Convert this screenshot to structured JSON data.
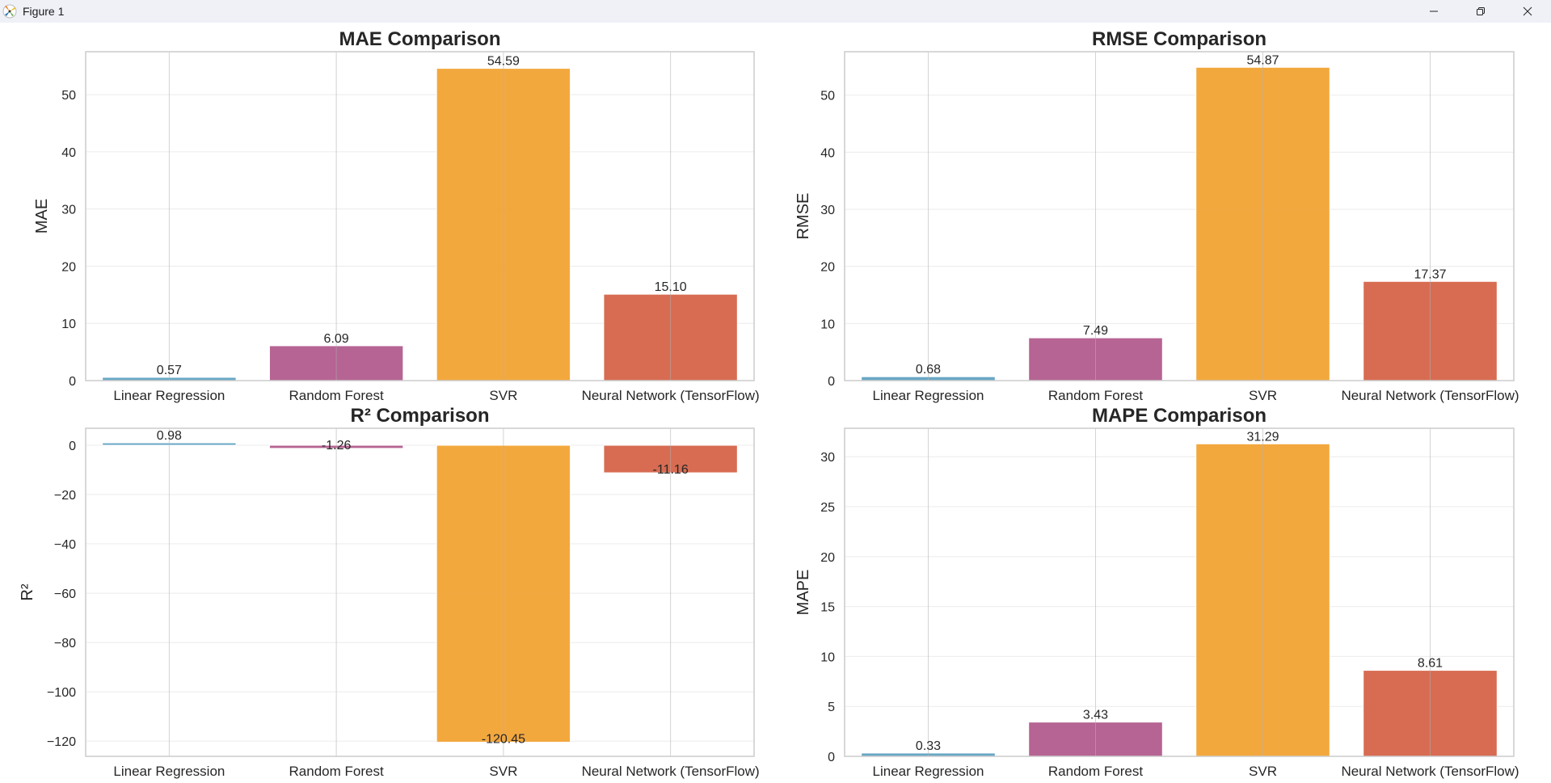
{
  "window": {
    "title": "Figure 1",
    "icons": {
      "app": "matplotlib-icon",
      "minimize": "minimize-icon",
      "restore": "restore-icon",
      "close": "close-icon"
    }
  },
  "palette": {
    "Linear Regression": "#5b9fbf",
    "Random Forest": "#b0578a",
    "SVR": "#f2a12e",
    "Neural Network (TensorFlow)": "#d45f43"
  },
  "chart_data": [
    {
      "type": "bar",
      "title": "MAE Comparison",
      "xlabel": "",
      "ylabel": "MAE",
      "categories": [
        "Linear Regression",
        "Random Forest",
        "SVR",
        "Neural Network (TensorFlow)"
      ],
      "values": [
        0.57,
        6.09,
        54.59,
        15.1
      ],
      "value_labels": [
        "0.57",
        "6.09",
        "54.59",
        "15.10"
      ],
      "ylim": [
        0,
        57.5
      ],
      "yticks": [
        0,
        10,
        20,
        30,
        40,
        50
      ],
      "ytick_labels": [
        "0",
        "10",
        "20",
        "30",
        "40",
        "50"
      ],
      "grid": true,
      "position": "top-left"
    },
    {
      "type": "bar",
      "title": "RMSE Comparison",
      "xlabel": "",
      "ylabel": "RMSE",
      "categories": [
        "Linear Regression",
        "Random Forest",
        "SVR",
        "Neural Network (TensorFlow)"
      ],
      "values": [
        0.68,
        7.49,
        54.87,
        17.37
      ],
      "value_labels": [
        "0.68",
        "7.49",
        "54.87",
        "17.37"
      ],
      "ylim": [
        0,
        57.6
      ],
      "yticks": [
        0,
        10,
        20,
        30,
        40,
        50
      ],
      "ytick_labels": [
        "0",
        "10",
        "20",
        "30",
        "40",
        "50"
      ],
      "grid": true,
      "position": "top-right"
    },
    {
      "type": "bar",
      "title": "R² Comparison",
      "xlabel": "",
      "ylabel": "R²",
      "categories": [
        "Linear Regression",
        "Random Forest",
        "SVR",
        "Neural Network (TensorFlow)"
      ],
      "values": [
        0.98,
        -1.26,
        -120.45,
        -11.16
      ],
      "value_labels": [
        "0.98",
        "-1.26",
        "-120.45",
        "-11.16"
      ],
      "ylim": [
        -126.2,
        6.9
      ],
      "yticks": [
        0,
        -20,
        -40,
        -60,
        -80,
        -100,
        -120
      ],
      "ytick_labels": [
        "0",
        "−20",
        "−40",
        "−60",
        "−80",
        "−100",
        "−120"
      ],
      "grid": true,
      "position": "bottom-left"
    },
    {
      "type": "bar",
      "title": "MAPE Comparison",
      "xlabel": "",
      "ylabel": "MAPE",
      "categories": [
        "Linear Regression",
        "Random Forest",
        "SVR",
        "Neural Network (TensorFlow)"
      ],
      "values": [
        0.33,
        3.43,
        31.29,
        8.61
      ],
      "value_labels": [
        "0.33",
        "3.43",
        "31.29",
        "8.61"
      ],
      "ylim": [
        0,
        32.85
      ],
      "yticks": [
        0,
        5,
        10,
        15,
        20,
        25,
        30
      ],
      "ytick_labels": [
        "0",
        "5",
        "10",
        "15",
        "20",
        "25",
        "30"
      ],
      "grid": true,
      "position": "bottom-right"
    }
  ]
}
